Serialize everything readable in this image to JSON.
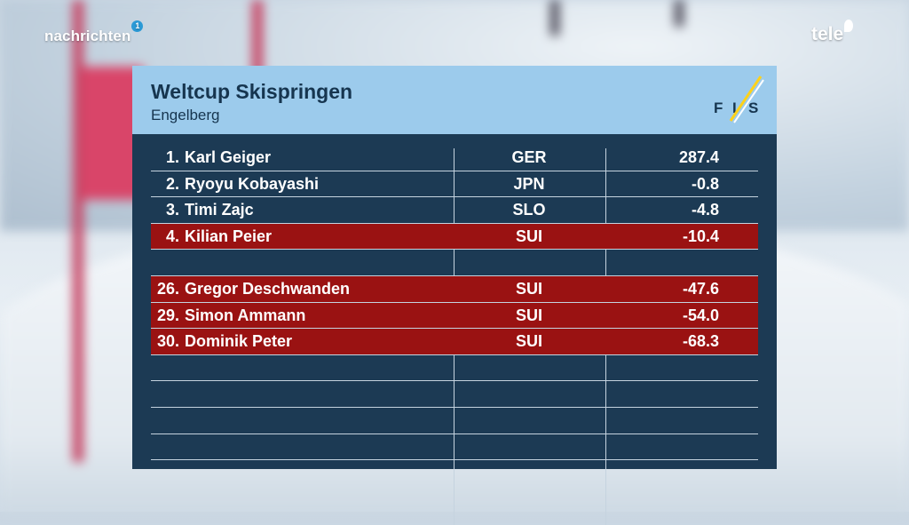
{
  "channel": {
    "name": "nachrichten",
    "badge": "1",
    "brand": "tele"
  },
  "board": {
    "title": "Weltcup Skispringen",
    "subtitle": "Engelberg",
    "logo": "FIS",
    "accent_color": "#9a1212",
    "header_color": "#9ccbec",
    "panel_color": "#1c3a54",
    "rows": [
      {
        "rank": "1.",
        "name": "Karl Geiger",
        "nat": "GER",
        "score": "287.4",
        "highlight": false
      },
      {
        "rank": "2.",
        "name": "Ryoyu Kobayashi",
        "nat": "JPN",
        "score": "-0.8",
        "highlight": false
      },
      {
        "rank": "3.",
        "name": "Timi Zajc",
        "nat": "SLO",
        "score": "-4.8",
        "highlight": false
      },
      {
        "rank": "4.",
        "name": "Kilian Peier",
        "nat": "SUI",
        "score": "-10.4",
        "highlight": true
      },
      {
        "rank": "",
        "name": "",
        "nat": "",
        "score": "",
        "highlight": false
      },
      {
        "rank": "26.",
        "name": "Gregor Deschwanden",
        "nat": "SUI",
        "score": "-47.6",
        "highlight": true
      },
      {
        "rank": "29.",
        "name": "Simon Ammann",
        "nat": "SUI",
        "score": "-54.0",
        "highlight": true
      },
      {
        "rank": "30.",
        "name": "Dominik Peter",
        "nat": "SUI",
        "score": "-68.3",
        "highlight": true
      },
      {
        "rank": "",
        "name": "",
        "nat": "",
        "score": "",
        "highlight": false
      },
      {
        "rank": "",
        "name": "",
        "nat": "",
        "score": "",
        "highlight": false
      },
      {
        "rank": "",
        "name": "",
        "nat": "",
        "score": "",
        "highlight": false
      },
      {
        "rank": "",
        "name": "",
        "nat": "",
        "score": "",
        "highlight": false
      }
    ]
  }
}
